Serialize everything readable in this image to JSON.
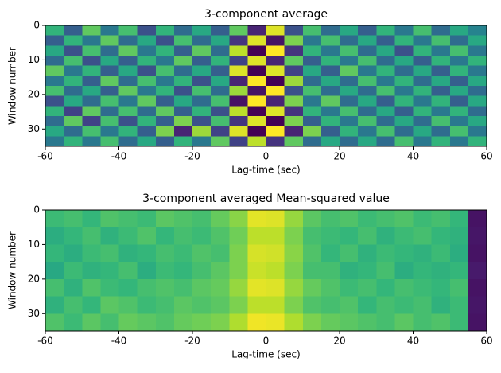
{
  "chart_data": [
    {
      "type": "heatmap",
      "title": "3-component average",
      "xlabel": "Lag-time (sec)",
      "ylabel": "Window number",
      "xlim": [
        -60,
        60
      ],
      "xticks": [
        -60,
        -40,
        -20,
        0,
        20,
        40,
        60
      ],
      "ylim": [
        35,
        0
      ],
      "yticks": [
        0,
        10,
        20,
        30
      ],
      "colormap": "viridis",
      "clim": [
        -1,
        1
      ],
      "z": [
        [
          0.3,
          -0.4,
          0.5,
          -0.2,
          0.4,
          -0.5,
          0.3,
          -0.3,
          0.2,
          -0.4,
          0.5,
          -0.8,
          0.9,
          -0.5,
          0.4,
          -0.3,
          0.2,
          -0.4,
          0.3,
          -0.2,
          0.4,
          -0.3,
          0.2,
          -0.1
        ],
        [
          -0.4,
          0.3,
          -0.2,
          0.5,
          -0.3,
          0.2,
          -0.5,
          0.4,
          -0.3,
          0.2,
          -0.7,
          0.9,
          -0.9,
          0.6,
          -0.2,
          0.4,
          -0.3,
          0.2,
          -0.4,
          0.3,
          -0.2,
          0.4,
          -0.3,
          0.2
        ],
        [
          0.2,
          -0.5,
          0.4,
          -0.3,
          0.5,
          -0.2,
          0.3,
          -0.4,
          0.5,
          -0.3,
          0.8,
          -1.0,
          1.0,
          -0.7,
          0.3,
          -0.2,
          0.4,
          -0.3,
          0.2,
          -0.5,
          0.3,
          -0.2,
          0.4,
          -0.2
        ],
        [
          -0.3,
          0.4,
          -0.5,
          0.2,
          -0.4,
          0.3,
          -0.2,
          0.5,
          -0.4,
          0.3,
          -0.6,
          0.9,
          -0.8,
          0.5,
          -0.4,
          0.3,
          -0.2,
          0.4,
          -0.3,
          0.2,
          -0.4,
          0.3,
          -0.2,
          0.3
        ],
        [
          0.5,
          -0.2,
          0.3,
          -0.4,
          0.2,
          -0.5,
          0.4,
          -0.3,
          0.2,
          -0.4,
          0.9,
          -1.0,
          0.9,
          -0.6,
          0.2,
          -0.4,
          0.5,
          -0.2,
          0.3,
          -0.3,
          0.2,
          -0.4,
          0.3,
          -0.2
        ],
        [
          -0.2,
          0.3,
          -0.4,
          0.5,
          -0.3,
          0.4,
          -0.2,
          0.3,
          -0.5,
          0.2,
          -0.8,
          1.0,
          -1.0,
          0.7,
          -0.3,
          0.2,
          -0.3,
          0.4,
          -0.2,
          0.3,
          -0.3,
          0.2,
          -0.4,
          0.2
        ],
        [
          0.4,
          -0.3,
          0.2,
          -0.4,
          0.5,
          -0.2,
          0.3,
          -0.5,
          0.4,
          -0.3,
          0.7,
          -0.9,
          1.0,
          -0.5,
          0.4,
          -0.3,
          0.2,
          -0.3,
          0.4,
          -0.2,
          0.3,
          -0.4,
          0.2,
          -0.3
        ],
        [
          -0.5,
          0.2,
          -0.3,
          0.4,
          -0.2,
          0.5,
          -0.4,
          0.2,
          -0.3,
          0.4,
          -0.9,
          1.0,
          -0.8,
          0.6,
          -0.2,
          0.5,
          -0.3,
          0.2,
          -0.4,
          0.3,
          -0.2,
          0.3,
          -0.4,
          0.2
        ],
        [
          0.3,
          -0.6,
          0.5,
          -0.3,
          0.4,
          -0.3,
          0.5,
          -0.4,
          0.3,
          -0.5,
          0.8,
          -1.0,
          0.9,
          -0.7,
          0.3,
          -0.2,
          0.4,
          -0.3,
          0.2,
          -0.4,
          0.3,
          -0.2,
          0.3,
          -0.3
        ],
        [
          -0.3,
          0.5,
          -0.6,
          0.4,
          -0.5,
          0.3,
          -0.4,
          0.6,
          -0.5,
          0.4,
          -0.7,
          0.9,
          -1.0,
          0.6,
          -0.4,
          0.3,
          -0.2,
          0.4,
          -0.3,
          0.2,
          -0.3,
          0.4,
          -0.2,
          0.2
        ],
        [
          0.2,
          -0.3,
          0.4,
          -0.2,
          0.3,
          -0.4,
          0.6,
          -0.8,
          0.7,
          -0.6,
          0.9,
          -1.0,
          1.0,
          -0.8,
          0.6,
          -0.4,
          0.3,
          -0.2,
          0.4,
          -0.3,
          0.2,
          -0.3,
          0.4,
          -0.2
        ],
        [
          -0.2,
          0.3,
          -0.2,
          0.4,
          -0.3,
          0.2,
          -0.4,
          0.3,
          -0.2,
          0.5,
          -0.6,
          0.8,
          -0.7,
          0.5,
          -0.3,
          0.2,
          -0.3,
          0.2,
          -0.3,
          0.4,
          -0.2,
          0.3,
          -0.2,
          0.3
        ]
      ]
    },
    {
      "type": "heatmap",
      "title": "3-component averaged Mean-squared value",
      "xlabel": "Lag-time (sec)",
      "ylabel": "Window number",
      "xlim": [
        -60,
        60
      ],
      "xticks": [
        -60,
        -40,
        -20,
        0,
        20,
        40,
        60
      ],
      "ylim": [
        35,
        0
      ],
      "yticks": [
        0,
        10,
        20,
        30
      ],
      "colormap": "viridis",
      "clim": [
        0,
        1
      ],
      "z": [
        [
          0.68,
          0.7,
          0.66,
          0.72,
          0.7,
          0.68,
          0.74,
          0.72,
          0.7,
          0.76,
          0.82,
          0.96,
          0.95,
          0.84,
          0.74,
          0.7,
          0.72,
          0.68,
          0.7,
          0.72,
          0.68,
          0.7,
          0.66,
          0.05
        ],
        [
          0.62,
          0.66,
          0.7,
          0.64,
          0.68,
          0.72,
          0.66,
          0.7,
          0.68,
          0.72,
          0.78,
          0.9,
          0.9,
          0.8,
          0.7,
          0.68,
          0.66,
          0.7,
          0.64,
          0.68,
          0.7,
          0.66,
          0.64,
          0.06
        ],
        [
          0.66,
          0.62,
          0.68,
          0.7,
          0.64,
          0.66,
          0.7,
          0.68,
          0.72,
          0.7,
          0.8,
          0.94,
          0.93,
          0.82,
          0.72,
          0.66,
          0.7,
          0.64,
          0.68,
          0.66,
          0.64,
          0.68,
          0.62,
          0.05
        ],
        [
          0.6,
          0.68,
          0.64,
          0.66,
          0.7,
          0.62,
          0.68,
          0.66,
          0.7,
          0.74,
          0.8,
          0.92,
          0.9,
          0.8,
          0.7,
          0.7,
          0.64,
          0.66,
          0.7,
          0.62,
          0.66,
          0.64,
          0.66,
          0.07
        ],
        [
          0.7,
          0.64,
          0.72,
          0.68,
          0.66,
          0.7,
          0.72,
          0.7,
          0.74,
          0.76,
          0.84,
          0.96,
          0.95,
          0.84,
          0.76,
          0.72,
          0.68,
          0.7,
          0.66,
          0.7,
          0.68,
          0.66,
          0.7,
          0.05
        ],
        [
          0.64,
          0.7,
          0.66,
          0.74,
          0.72,
          0.68,
          0.7,
          0.74,
          0.72,
          0.74,
          0.8,
          0.9,
          0.9,
          0.8,
          0.72,
          0.7,
          0.72,
          0.66,
          0.7,
          0.68,
          0.7,
          0.64,
          0.68,
          0.06
        ],
        [
          0.72,
          0.68,
          0.74,
          0.7,
          0.76,
          0.74,
          0.72,
          0.76,
          0.78,
          0.8,
          0.88,
          0.98,
          0.97,
          0.88,
          0.8,
          0.76,
          0.74,
          0.72,
          0.7,
          0.74,
          0.7,
          0.72,
          0.68,
          0.05
        ]
      ]
    }
  ]
}
